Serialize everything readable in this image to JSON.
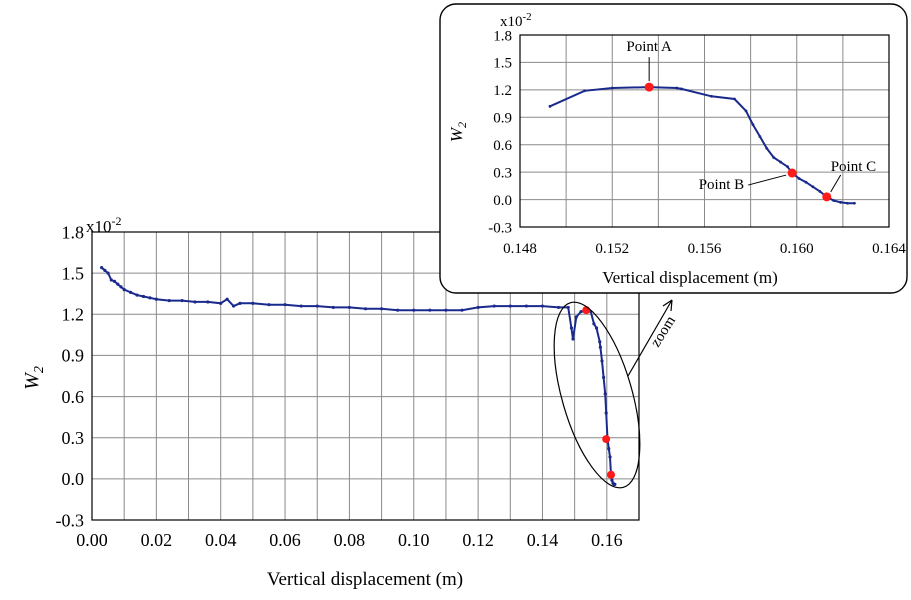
{
  "chart_data": [
    {
      "type": "line",
      "xlabel": "Vertical displacement (m)",
      "ylabel": "W",
      "ylabel_subscript": "2",
      "scale_label_base": "x10",
      "scale_label_exp": "-2",
      "xlim": [
        0.0,
        0.17
      ],
      "ylim": [
        -0.3,
        1.8
      ],
      "xticks": [
        "0.00",
        "0.02",
        "0.04",
        "0.06",
        "0.08",
        "0.10",
        "0.12",
        "0.14",
        "0.16"
      ],
      "yticks": [
        "-0.3",
        "0.0",
        "0.3",
        "0.6",
        "0.9",
        "1.2",
        "1.5",
        "1.8"
      ],
      "grid": true,
      "series": [
        {
          "x": [
            0.003,
            0.004,
            0.005,
            0.006,
            0.007,
            0.008,
            0.009,
            0.01,
            0.012,
            0.014,
            0.016,
            0.018,
            0.02,
            0.024,
            0.028,
            0.032,
            0.036,
            0.04,
            0.042,
            0.044,
            0.046,
            0.05,
            0.055,
            0.06,
            0.065,
            0.07,
            0.075,
            0.08,
            0.085,
            0.09,
            0.095,
            0.1,
            0.105,
            0.11,
            0.115,
            0.12,
            0.125,
            0.13,
            0.135,
            0.14,
            0.145,
            0.148,
            0.149,
            0.1495,
            0.1505,
            0.152,
            0.1535,
            0.155,
            0.156,
            0.1568,
            0.1578,
            0.158,
            0.1585,
            0.159,
            0.1595,
            0.1598,
            0.1602,
            0.1606,
            0.161,
            0.1613,
            0.1616,
            0.1619,
            0.1622,
            0.1625
          ],
          "y": [
            1.54,
            1.52,
            1.5,
            1.45,
            1.44,
            1.42,
            1.4,
            1.38,
            1.36,
            1.34,
            1.33,
            1.32,
            1.31,
            1.3,
            1.3,
            1.29,
            1.29,
            1.28,
            1.31,
            1.26,
            1.28,
            1.28,
            1.27,
            1.27,
            1.26,
            1.26,
            1.25,
            1.25,
            1.24,
            1.24,
            1.23,
            1.23,
            1.23,
            1.23,
            1.23,
            1.25,
            1.26,
            1.26,
            1.26,
            1.26,
            1.25,
            1.25,
            1.1,
            1.02,
            1.18,
            1.22,
            1.22,
            1.22,
            1.13,
            1.1,
            1.0,
            0.96,
            0.86,
            0.74,
            0.62,
            0.48,
            0.29,
            0.22,
            0.16,
            0.03,
            -0.01,
            -0.03,
            -0.04,
            -0.04
          ]
        }
      ],
      "highlighted_points": [
        {
          "x": 0.1536,
          "y": 1.23
        },
        {
          "x": 0.1598,
          "y": 0.29
        },
        {
          "x": 0.1613,
          "y": 0.03
        }
      ],
      "annotation": "zoom"
    },
    {
      "type": "line",
      "xlabel": "Vertical displacement (m)",
      "ylabel": "W",
      "ylabel_subscript": "2",
      "scale_label_base": "x10",
      "scale_label_exp": "-2",
      "xlim": [
        0.148,
        0.164
      ],
      "ylim": [
        -0.3,
        1.8
      ],
      "xticks": [
        "0.148",
        "0.152",
        "0.156",
        "0.160",
        "0.164"
      ],
      "yticks": [
        "-0.3",
        "0.0",
        "0.3",
        "0.6",
        "0.9",
        "1.2",
        "1.5",
        "1.8"
      ],
      "grid": true,
      "series": [
        {
          "x": [
            0.1493,
            0.1508,
            0.152,
            0.1536,
            0.1548,
            0.155,
            0.1563,
            0.1573,
            0.1578,
            0.1581,
            0.1584,
            0.1587,
            0.159,
            0.1593,
            0.1596,
            0.1598,
            0.1601,
            0.1604,
            0.1607,
            0.161,
            0.1613,
            0.1616,
            0.1619,
            0.1622,
            0.1625
          ],
          "y": [
            1.02,
            1.19,
            1.22,
            1.23,
            1.22,
            1.21,
            1.13,
            1.1,
            0.97,
            0.82,
            0.69,
            0.56,
            0.46,
            0.41,
            0.36,
            0.29,
            0.23,
            0.19,
            0.14,
            0.09,
            0.03,
            -0.01,
            -0.03,
            -0.04,
            -0.04
          ]
        }
      ],
      "highlighted_points": [
        {
          "x": 0.1536,
          "y": 1.23,
          "label": "Point A"
        },
        {
          "x": 0.1598,
          "y": 0.29,
          "label": "Point B"
        },
        {
          "x": 0.1613,
          "y": 0.03,
          "label": "Point C"
        }
      ]
    }
  ]
}
